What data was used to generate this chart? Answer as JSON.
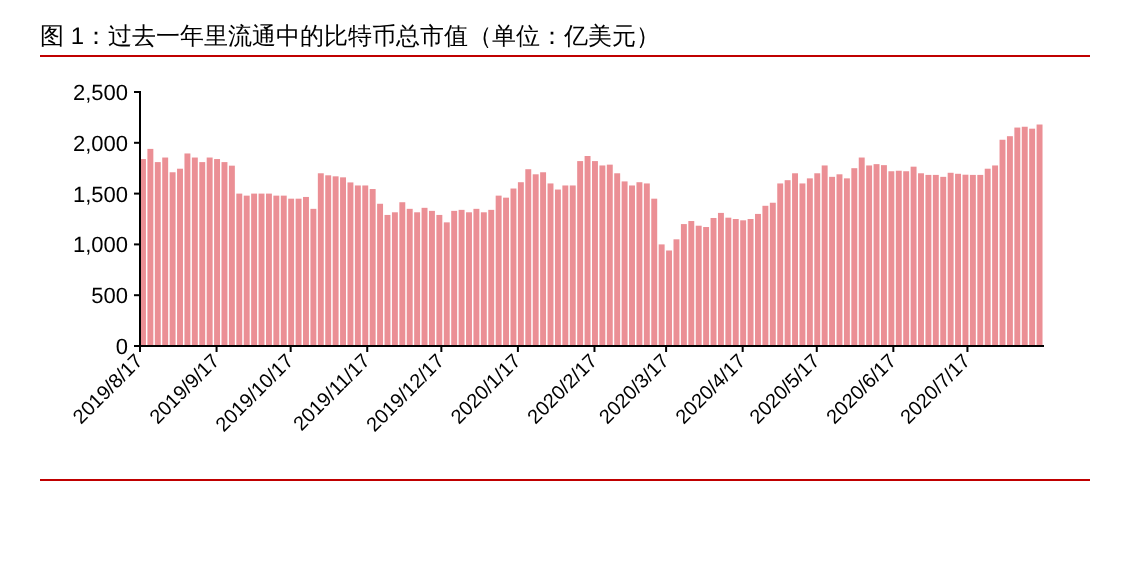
{
  "chart_data": {
    "type": "bar",
    "title": "图 1：过去一年里流通中的比特币总市值（单位：亿美元）",
    "x": [
      "2019-08-17",
      "2019-08-20",
      "2019-08-23",
      "2019-08-26",
      "2019-08-29",
      "2019-09-01",
      "2019-09-04",
      "2019-09-07",
      "2019-09-10",
      "2019-09-13",
      "2019-09-16",
      "2019-09-19",
      "2019-09-22",
      "2019-09-25",
      "2019-09-28",
      "2019-10-01",
      "2019-10-04",
      "2019-10-07",
      "2019-10-10",
      "2019-10-13",
      "2019-10-16",
      "2019-10-19",
      "2019-10-22",
      "2019-10-25",
      "2019-10-28",
      "2019-10-31",
      "2019-11-03",
      "2019-11-06",
      "2019-11-09",
      "2019-11-12",
      "2019-11-15",
      "2019-11-18",
      "2019-11-21",
      "2019-11-24",
      "2019-11-27",
      "2019-11-30",
      "2019-12-03",
      "2019-12-06",
      "2019-12-09",
      "2019-12-12",
      "2019-12-15",
      "2019-12-18",
      "2019-12-21",
      "2019-12-24",
      "2019-12-27",
      "2019-12-30",
      "2020-01-02",
      "2020-01-05",
      "2020-01-08",
      "2020-01-11",
      "2020-01-14",
      "2020-01-17",
      "2020-01-20",
      "2020-01-23",
      "2020-01-26",
      "2020-01-29",
      "2020-02-01",
      "2020-02-04",
      "2020-02-07",
      "2020-02-10",
      "2020-02-13",
      "2020-02-16",
      "2020-02-19",
      "2020-02-22",
      "2020-02-25",
      "2020-02-28",
      "2020-03-02",
      "2020-03-05",
      "2020-03-08",
      "2020-03-11",
      "2020-03-14",
      "2020-03-17",
      "2020-03-20",
      "2020-03-23",
      "2020-03-26",
      "2020-03-29",
      "2020-04-01",
      "2020-04-04",
      "2020-04-07",
      "2020-04-10",
      "2020-04-13",
      "2020-04-16",
      "2020-04-19",
      "2020-04-22",
      "2020-04-25",
      "2020-04-28",
      "2020-05-01",
      "2020-05-04",
      "2020-05-07",
      "2020-05-10",
      "2020-05-13",
      "2020-05-16",
      "2020-05-19",
      "2020-05-22",
      "2020-05-25",
      "2020-05-28",
      "2020-05-31",
      "2020-06-03",
      "2020-06-06",
      "2020-06-09",
      "2020-06-12",
      "2020-06-15",
      "2020-06-18",
      "2020-06-21",
      "2020-06-24",
      "2020-06-27",
      "2020-06-30",
      "2020-07-03",
      "2020-07-06",
      "2020-07-09",
      "2020-07-12",
      "2020-07-15",
      "2020-07-18",
      "2020-07-21",
      "2020-07-24",
      "2020-07-27",
      "2020-07-30",
      "2020-08-02",
      "2020-08-05",
      "2020-08-08",
      "2020-08-11",
      "2020-08-14"
    ],
    "values": [
      1840,
      1940,
      1810,
      1855,
      1710,
      1745,
      1895,
      1855,
      1810,
      1855,
      1840,
      1810,
      1775,
      1500,
      1480,
      1500,
      1500,
      1500,
      1480,
      1480,
      1450,
      1450,
      1467,
      1350,
      1700,
      1680,
      1670,
      1660,
      1610,
      1580,
      1580,
      1545,
      1400,
      1290,
      1316,
      1415,
      1350,
      1316,
      1360,
      1330,
      1290,
      1217,
      1330,
      1340,
      1316,
      1350,
      1316,
      1340,
      1480,
      1460,
      1550,
      1612,
      1740,
      1690,
      1710,
      1600,
      1540,
      1580,
      1580,
      1820,
      1870,
      1820,
      1777,
      1785,
      1700,
      1620,
      1580,
      1612,
      1600,
      1450,
      1000,
      940,
      1050,
      1200,
      1230,
      1184,
      1171,
      1260,
      1310,
      1263,
      1250,
      1237,
      1250,
      1300,
      1380,
      1410,
      1600,
      1632,
      1700,
      1600,
      1650,
      1700,
      1777,
      1665,
      1690,
      1650,
      1750,
      1855,
      1777,
      1790,
      1780,
      1720,
      1725,
      1720,
      1765,
      1700,
      1684,
      1684,
      1665,
      1705,
      1695,
      1686,
      1684,
      1684,
      1745,
      1777,
      2030,
      2065,
      2150,
      2158,
      2139,
      2180
    ],
    "color": "#eb8f95",
    "xlim": [
      "2019-08-17",
      "2020-08-17"
    ],
    "xticks": [
      {
        "value": "2019-08-17",
        "label": "2019/8/17"
      },
      {
        "value": "2019-09-17",
        "label": "2019/9/17"
      },
      {
        "value": "2019-10-17",
        "label": "2019/10/17"
      },
      {
        "value": "2019-11-17",
        "label": "2019/11/17"
      },
      {
        "value": "2019-12-17",
        "label": "2019/12/17"
      },
      {
        "value": "2020-01-17",
        "label": "2020/1/17"
      },
      {
        "value": "2020-02-17",
        "label": "2020/2/17"
      },
      {
        "value": "2020-03-17",
        "label": "2020/3/17"
      },
      {
        "value": "2020-04-17",
        "label": "2020/4/17"
      },
      {
        "value": "2020-05-17",
        "label": "2020/5/17"
      },
      {
        "value": "2020-06-17",
        "label": "2020/6/17"
      },
      {
        "value": "2020-07-17",
        "label": "2020/7/17"
      }
    ],
    "ylim": [
      0,
      2500
    ],
    "yticks": [
      0,
      {
        "value": 500,
        "label": "500"
      },
      {
        "value": 1000,
        "label": "1,000"
      },
      {
        "value": 1500,
        "label": "1,500"
      },
      {
        "value": 2000,
        "label": "2,000"
      },
      {
        "value": 2500,
        "label": "2,500"
      }
    ]
  }
}
